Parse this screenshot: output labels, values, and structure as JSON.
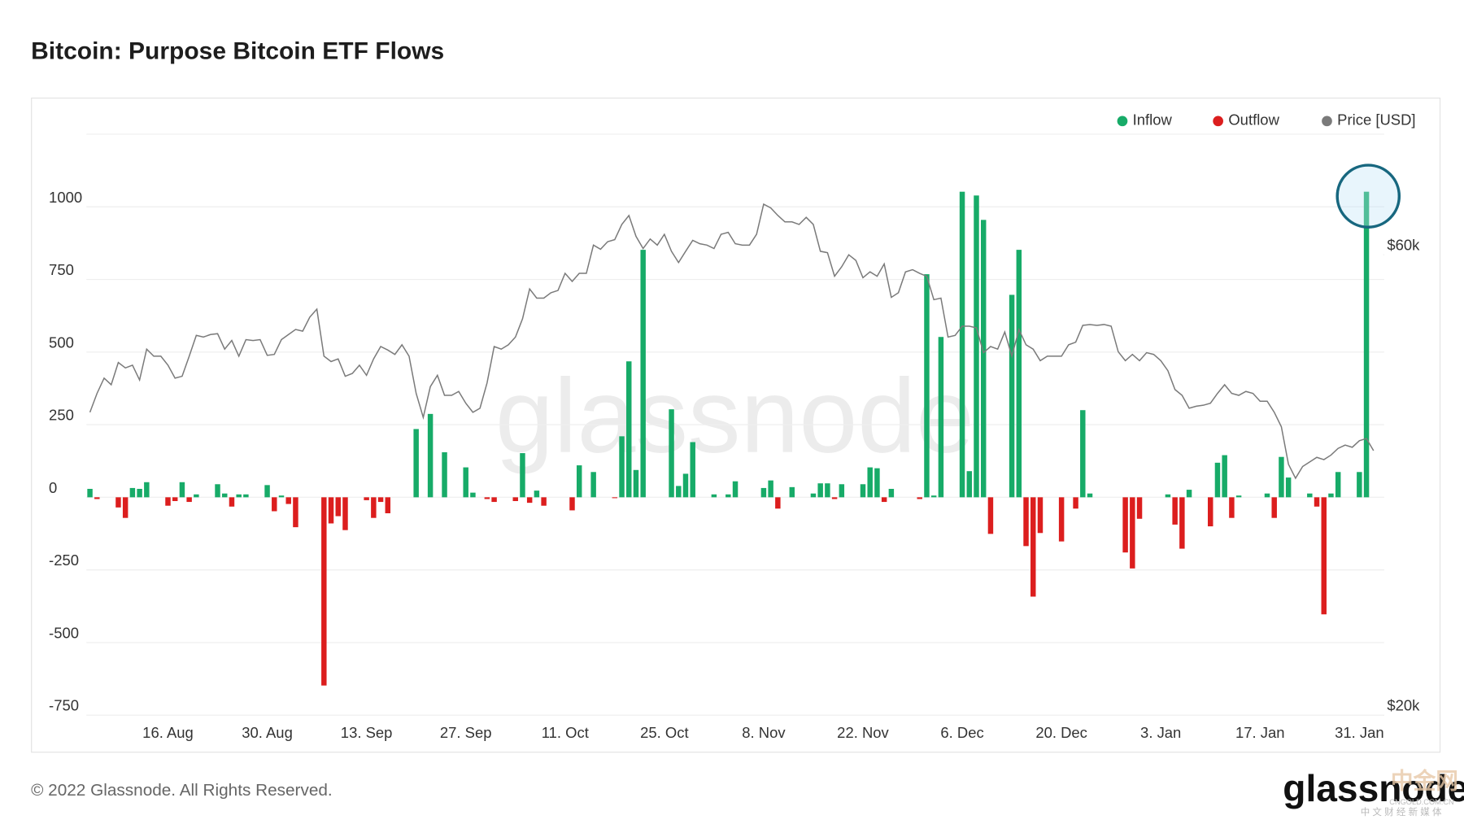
{
  "chart_data": {
    "type": "bar",
    "title": "Bitcoin: Purpose Bitcoin ETF Flows",
    "categories": [
      null,
      null,
      null,
      null,
      null,
      null,
      null,
      null,
      null,
      null,
      null,
      "16. Aug",
      null,
      null,
      null,
      null,
      null,
      null,
      null,
      null,
      null,
      null,
      null,
      null,
      null,
      "30. Aug",
      null,
      null,
      null,
      null,
      null,
      null,
      null,
      null,
      null,
      null,
      null,
      null,
      null,
      "13. Sep",
      null,
      null,
      null,
      null,
      null,
      null,
      null,
      null,
      null,
      null,
      null,
      null,
      null,
      "27. Sep",
      null,
      null,
      null,
      null,
      null,
      null,
      null,
      null,
      null,
      null,
      null,
      null,
      null,
      "11. Oct",
      null,
      null,
      null,
      null,
      null,
      null,
      null,
      null,
      null,
      null,
      null,
      null,
      null,
      "25. Oct",
      null,
      null,
      null,
      null,
      null,
      null,
      null,
      null,
      null,
      null,
      null,
      null,
      null,
      "8. Nov",
      null,
      null,
      null,
      null,
      null,
      null,
      null,
      null,
      null,
      null,
      null,
      null,
      null,
      "22. Nov",
      null,
      null,
      null,
      null,
      null,
      null,
      null,
      null,
      null,
      null,
      null,
      null,
      null,
      "6. Dec",
      null,
      null,
      null,
      null,
      null,
      null,
      null,
      null,
      null,
      null,
      null,
      null,
      null,
      "20. Dec",
      null,
      null,
      null,
      null,
      null,
      null,
      null,
      null,
      null,
      null,
      null,
      null,
      null,
      "3. Jan",
      null,
      null,
      null,
      null,
      null,
      null,
      null,
      null,
      null,
      null,
      null,
      null,
      null,
      "17. Jan",
      null,
      null,
      null,
      null,
      null,
      null,
      null,
      null,
      null,
      null,
      null,
      null,
      null,
      "31. Jan",
      null,
      null,
      null
    ],
    "series": [
      {
        "name": "Inflow",
        "color": "#17ab68",
        "values": [
          29,
          null,
          null,
          null,
          null,
          null,
          32,
          29,
          52,
          null,
          null,
          null,
          null,
          52,
          null,
          10,
          null,
          null,
          45,
          13,
          null,
          10,
          10,
          null,
          null,
          42,
          null,
          6,
          null,
          null,
          null,
          null,
          null,
          null,
          null,
          null,
          null,
          null,
          null,
          null,
          null,
          null,
          null,
          null,
          null,
          null,
          235,
          null,
          287,
          null,
          155,
          null,
          null,
          103,
          16,
          null,
          null,
          null,
          null,
          null,
          null,
          152,
          null,
          23,
          null,
          null,
          null,
          null,
          null,
          110,
          null,
          87,
          null,
          null,
          null,
          210,
          468,
          94,
          852,
          null,
          null,
          null,
          303,
          39,
          81,
          190,
          null,
          null,
          10,
          null,
          10,
          55,
          null,
          null,
          null,
          32,
          58,
          null,
          null,
          35,
          null,
          null,
          13,
          48,
          48,
          null,
          45,
          null,
          null,
          45,
          103,
          100,
          null,
          29,
          null,
          null,
          null,
          null,
          768,
          6,
          552,
          null,
          null,
          1052,
          90,
          1039,
          955,
          null,
          null,
          null,
          697,
          852,
          null,
          null,
          null,
          null,
          null,
          null,
          null,
          null,
          300,
          13,
          null,
          null,
          null,
          null,
          null,
          null,
          null,
          null,
          null,
          null,
          10,
          null,
          null,
          26,
          null,
          null,
          null,
          119,
          145,
          null,
          6,
          null,
          null,
          null,
          13,
          null,
          139,
          68,
          null,
          null,
          13,
          null,
          null,
          13,
          87,
          null,
          null,
          87,
          1052,
          null,
          null
        ]
      },
      {
        "name": "Outflow",
        "color": "#dc1e1e",
        "values": [
          null,
          -6,
          null,
          null,
          -35,
          -71,
          null,
          null,
          null,
          null,
          null,
          -29,
          -13,
          null,
          -16,
          null,
          null,
          null,
          null,
          null,
          -32,
          null,
          null,
          null,
          null,
          null,
          -48,
          null,
          -23,
          -103,
          null,
          null,
          null,
          -648,
          -90,
          -65,
          -113,
          null,
          null,
          -10,
          -71,
          -16,
          -55,
          null,
          null,
          null,
          null,
          null,
          null,
          null,
          null,
          null,
          null,
          null,
          null,
          null,
          -6,
          -16,
          null,
          null,
          -13,
          null,
          -19,
          null,
          -29,
          null,
          null,
          null,
          -45,
          null,
          null,
          null,
          null,
          null,
          -3,
          null,
          null,
          null,
          null,
          null,
          null,
          null,
          null,
          null,
          null,
          null,
          null,
          null,
          null,
          null,
          null,
          null,
          null,
          null,
          null,
          null,
          null,
          -39,
          null,
          null,
          null,
          null,
          null,
          null,
          null,
          -6,
          null,
          null,
          null,
          null,
          null,
          null,
          -16,
          null,
          null,
          null,
          null,
          -6,
          null,
          null,
          null,
          null,
          null,
          null,
          null,
          null,
          null,
          -126,
          null,
          null,
          null,
          null,
          -168,
          -342,
          -123,
          null,
          null,
          -152,
          null,
          -39,
          null,
          null,
          null,
          null,
          null,
          null,
          -190,
          -245,
          -74,
          null,
          null,
          null,
          null,
          -94,
          -177,
          null,
          null,
          null,
          -100,
          null,
          null,
          -71,
          null,
          null,
          null,
          null,
          null,
          -71,
          null,
          null,
          null,
          null,
          null,
          -32,
          -403,
          null,
          null,
          null,
          null,
          null,
          null,
          null,
          null
        ]
      },
      {
        "name": "Price [USD]",
        "color": "#7a7a7a",
        "type": "line",
        "axis": "y2",
        "values": [
          41200,
          43100,
          44700,
          44000,
          46400,
          45800,
          46100,
          44500,
          47900,
          47100,
          47100,
          46100,
          44700,
          44900,
          47100,
          49500,
          49300,
          49600,
          49700,
          47900,
          48900,
          47100,
          49000,
          48900,
          49000,
          47200,
          47300,
          49000,
          49600,
          50200,
          50000,
          51700,
          52700,
          47100,
          46500,
          46800,
          44900,
          45200,
          46100,
          45000,
          46800,
          48200,
          47800,
          47300,
          48400,
          47100,
          43100,
          40700,
          43800,
          45000,
          42900,
          42900,
          43300,
          42100,
          41200,
          41600,
          44200,
          48200,
          47900,
          48400,
          49300,
          51500,
          55300,
          54100,
          54100,
          54800,
          55100,
          57400,
          56300,
          57400,
          57400,
          61400,
          60800,
          61900,
          62200,
          64500,
          65900,
          62700,
          60900,
          62300,
          61400,
          63000,
          60500,
          58900,
          60500,
          62100,
          61600,
          61400,
          60900,
          63000,
          63300,
          61600,
          61400,
          61400,
          63000,
          67700,
          67100,
          65900,
          64900,
          64900,
          64500,
          65600,
          64500,
          60500,
          60300,
          57000,
          58300,
          60000,
          59200,
          56800,
          57600,
          57000,
          58700,
          54200,
          54800,
          57600,
          57900,
          57400,
          57000,
          53900,
          54100,
          49300,
          49500,
          50600,
          50600,
          50400,
          47500,
          48200,
          47900,
          49900,
          47100,
          50200,
          48400,
          47900,
          46600,
          47100,
          47100,
          47100,
          48400,
          48700,
          50700,
          50800,
          50700,
          50800,
          50600,
          47600,
          46600,
          47300,
          46600,
          47500,
          47300,
          46600,
          45500,
          43500,
          42900,
          41600,
          41800,
          41900,
          42100,
          43100,
          44000,
          43100,
          42900,
          43300,
          43100,
          42300,
          42300,
          41200,
          39800,
          36400,
          35200,
          36200,
          36600,
          37000,
          36800,
          37200,
          37800,
          38100,
          37900,
          38500,
          38700,
          37600,
          null
        ]
      }
    ],
    "ylim": [
      -750,
      1250
    ],
    "yticks": [
      -750,
      -500,
      -250,
      0,
      250,
      500,
      750,
      1000
    ],
    "y2lim": [
      20000,
      80000
    ],
    "y2scale": "log",
    "y2ticks": [
      {
        "value": 20000,
        "label": "$20k"
      },
      {
        "value": 60000,
        "label": "$60k"
      }
    ],
    "grid": true,
    "legend": "top-right",
    "watermark": "glassnode",
    "footer": "© 2022 Glassnode. All Rights Reserved.",
    "logo": "glassnode",
    "source_mark": "中金网",
    "source_url": "CNGOLD.COM.CN",
    "source_slogan": "中 文 财 经 新 媒 体"
  }
}
